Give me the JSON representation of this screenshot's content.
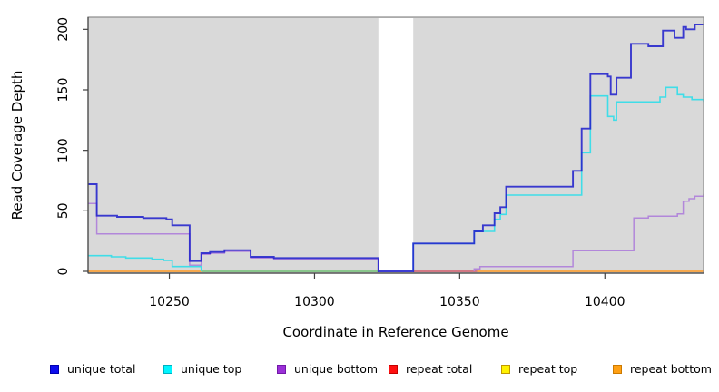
{
  "chart_data": {
    "type": "line",
    "style": "step-after-coverage-plot",
    "xlabel": "Coordinate in Reference Genome",
    "ylabel": "Read Coverage Depth",
    "xlim": [
      10222,
      10434
    ],
    "ylim": [
      0,
      210
    ],
    "x_ticks": [
      10250,
      10300,
      10350,
      10400
    ],
    "y_ticks": [
      0,
      50,
      100,
      150,
      200
    ],
    "plot_background": "#d9d9d9",
    "outer_background": "#ffffff",
    "box_border_color": "#8c8c8c",
    "axis_color": "#404040",
    "gap_region": {
      "x1": 10322,
      "x2": 10334,
      "fill": "#ffffff"
    },
    "series": [
      {
        "name": "repeat top",
        "color": "#6fbf73",
        "width": 1.5,
        "opacity": 1,
        "note": "at zero depth; appears green where it overlaps unique top baseline",
        "paths": [
          [
            [
              10261,
              0
            ],
            [
              10322,
              0
            ]
          ]
        ]
      },
      {
        "name": "repeat total",
        "color": "#d05868",
        "width": 1.5,
        "opacity": 1,
        "paths": [
          [
            [
              10334,
              0
            ],
            [
              10356,
              0
            ]
          ]
        ]
      },
      {
        "name": "repeat bottom",
        "color": "#f9a03a",
        "width": 1.8,
        "opacity": 1,
        "paths": [
          [
            [
              10222,
              0
            ],
            [
              10261,
              0
            ]
          ],
          [
            [
              10356,
              0
            ],
            [
              10434,
              0
            ]
          ]
        ]
      },
      {
        "name": "unique bottom",
        "color": "#b287da",
        "width": 1.5,
        "opacity": 1,
        "paths": [
          [
            [
              10222,
              56
            ],
            [
              10225,
              31
            ],
            [
              10257,
              5
            ],
            [
              10261,
              14
            ],
            [
              10264,
              15
            ],
            [
              10269,
              16.5
            ],
            [
              10278,
              11
            ],
            [
              10286,
              10
            ],
            [
              10322,
              0
            ]
          ],
          [
            [
              10355,
              0
            ],
            [
              10355,
              2
            ],
            [
              10357,
              4
            ],
            [
              10389,
              17
            ],
            [
              10410,
              44
            ],
            [
              10415,
              45.5
            ],
            [
              10425,
              47.5
            ],
            [
              10427,
              58
            ],
            [
              10429,
              60
            ],
            [
              10431,
              62
            ],
            [
              10434,
              64
            ]
          ]
        ]
      },
      {
        "name": "unique top",
        "color": "#3fdde8",
        "width": 1.6,
        "opacity": 1,
        "paths": [
          [
            [
              10222,
              13
            ],
            [
              10230,
              12
            ],
            [
              10235,
              11
            ],
            [
              10244,
              10
            ],
            [
              10248,
              9
            ],
            [
              10251,
              4
            ],
            [
              10261,
              0
            ]
          ],
          [
            [
              10334,
              0
            ],
            [
              10334,
              23
            ],
            [
              10355,
              33
            ],
            [
              10362,
              43
            ],
            [
              10364,
              47
            ],
            [
              10366,
              63
            ],
            [
              10392,
              98
            ],
            [
              10395,
              145
            ],
            [
              10401,
              128
            ],
            [
              10403,
              125
            ],
            [
              10404,
              140
            ],
            [
              10419,
              144
            ],
            [
              10421,
              152
            ],
            [
              10425,
              146
            ],
            [
              10427,
              144
            ],
            [
              10430,
              142
            ],
            [
              10434,
              140
            ]
          ]
        ]
      },
      {
        "name": "unique total",
        "color": "#2222cc",
        "width": 1.9,
        "opacity": 0.88,
        "paths": [
          [
            [
              10222,
              72
            ],
            [
              10225,
              46
            ],
            [
              10232,
              45
            ],
            [
              10241,
              44
            ],
            [
              10249,
              43
            ],
            [
              10251,
              38
            ],
            [
              10257,
              8.5
            ],
            [
              10261,
              15
            ],
            [
              10264,
              16
            ],
            [
              10269,
              17.5
            ],
            [
              10278,
              12
            ],
            [
              10286,
              11
            ],
            [
              10322,
              0
            ],
            [
              10334,
              23
            ],
            [
              10355,
              33
            ],
            [
              10358,
              38
            ],
            [
              10362,
              48
            ],
            [
              10364,
              53
            ],
            [
              10366,
              70
            ],
            [
              10389,
              83
            ],
            [
              10392,
              118
            ],
            [
              10395,
              163
            ],
            [
              10401,
              161
            ],
            [
              10402,
              146
            ],
            [
              10404,
              160
            ],
            [
              10409,
              188
            ],
            [
              10415,
              186
            ],
            [
              10420,
              199
            ],
            [
              10424,
              193
            ],
            [
              10427,
              202
            ],
            [
              10428,
              200
            ],
            [
              10431,
              204
            ],
            [
              10434,
              204
            ]
          ]
        ]
      }
    ]
  },
  "legend": {
    "items": [
      {
        "label": "unique total",
        "fill": "#0d0dee",
        "border": "#0000b0"
      },
      {
        "label": "unique top",
        "fill": "#00f5ff",
        "border": "#00b0c0"
      },
      {
        "label": "unique bottom",
        "fill": "#9b30d8",
        "border": "#7218a8"
      },
      {
        "label": "repeat total",
        "fill": "#ff1010",
        "border": "#c40000"
      },
      {
        "label": "repeat top",
        "fill": "#fff200",
        "border": "#c09800"
      },
      {
        "label": "repeat bottom",
        "fill": "#ffa014",
        "border": "#cc7a00"
      }
    ]
  }
}
